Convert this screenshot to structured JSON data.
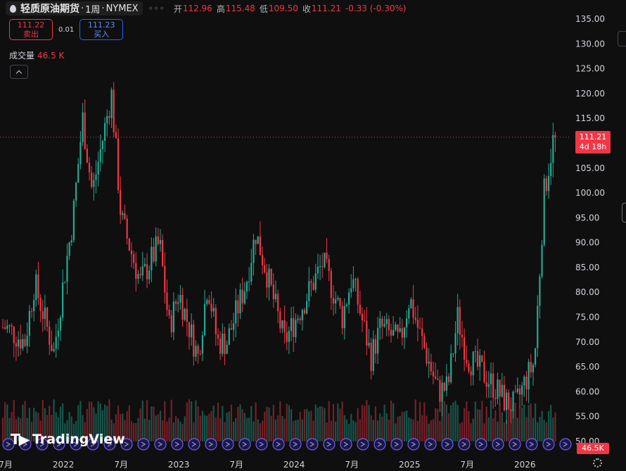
{
  "legend": {
    "symbol": "轻质原油期货",
    "interval": "1周",
    "exchange": "NYMEX",
    "more_dots": "◦◦◦",
    "open_label": "开",
    "open": "112.96",
    "high_label": "高",
    "high": "115.48",
    "low_label": "低",
    "low": "109.50",
    "close_label": "收",
    "close": "111.21",
    "change": "-0.33 (-0.30%)"
  },
  "trade": {
    "sell_price": "111.22",
    "sell_label": "卖出",
    "spread": "0.01",
    "buy_price": "111.23",
    "buy_label": "买入"
  },
  "volume": {
    "label": "成交量",
    "value": "46.5 K"
  },
  "last_price": {
    "price": "111.21",
    "countdown": "4d 18h"
  },
  "volume_tag": "46.5K",
  "brand": {
    "text": "TradingView"
  },
  "colors": {
    "up": "#22ab94",
    "down": "#f23645",
    "background": "#0f0f0f",
    "grid": "#2a2e39",
    "text": "#d1d4dc"
  },
  "icons": {
    "symbol": "droplet-icon",
    "collapse": "chevron-up-icon",
    "settings": "gear-icon"
  },
  "chart_data": {
    "type": "candlestick",
    "price_axis": {
      "min": 50,
      "max": 135,
      "ticks": [
        135,
        130,
        125,
        120,
        115,
        110,
        105,
        100,
        95,
        90,
        85,
        80,
        75,
        70,
        65,
        60,
        55,
        50
      ]
    },
    "time_axis": {
      "labels": [
        "7月",
        "2022",
        "7月",
        "2023",
        "7月",
        "2024",
        "7月",
        "2025",
        "7月",
        "2026"
      ]
    },
    "last_price": 111.21,
    "keypoints": [
      {
        "t": "2021-07",
        "price": 73
      },
      {
        "t": "2021-09",
        "price": 70
      },
      {
        "t": "2021-10",
        "price": 82
      },
      {
        "t": "2021-12",
        "price": 68
      },
      {
        "t": "2022-01",
        "price": 82
      },
      {
        "t": "2022-02",
        "price": 95
      },
      {
        "t": "2022-03",
        "price": 115
      },
      {
        "t": "2022-04",
        "price": 100
      },
      {
        "t": "2022-06",
        "price": 120
      },
      {
        "t": "2022-07",
        "price": 95
      },
      {
        "t": "2022-09",
        "price": 82
      },
      {
        "t": "2022-11",
        "price": 90
      },
      {
        "t": "2022-12",
        "price": 73
      },
      {
        "t": "2023-01",
        "price": 80
      },
      {
        "t": "2023-03",
        "price": 67
      },
      {
        "t": "2023-04",
        "price": 82
      },
      {
        "t": "2023-05",
        "price": 70
      },
      {
        "t": "2023-06",
        "price": 70
      },
      {
        "t": "2023-08",
        "price": 82
      },
      {
        "t": "2023-09",
        "price": 92
      },
      {
        "t": "2023-10",
        "price": 85
      },
      {
        "t": "2023-12",
        "price": 70
      },
      {
        "t": "2024-01",
        "price": 74
      },
      {
        "t": "2024-03",
        "price": 82
      },
      {
        "t": "2024-04",
        "price": 86
      },
      {
        "t": "2024-06",
        "price": 75
      },
      {
        "t": "2024-07",
        "price": 83
      },
      {
        "t": "2024-09",
        "price": 67
      },
      {
        "t": "2024-10",
        "price": 73
      },
      {
        "t": "2024-12",
        "price": 70
      },
      {
        "t": "2025-01",
        "price": 79
      },
      {
        "t": "2025-02",
        "price": 72
      },
      {
        "t": "2025-04",
        "price": 60
      },
      {
        "t": "2025-05",
        "price": 61
      },
      {
        "t": "2025-06",
        "price": 75
      },
      {
        "t": "2025-07",
        "price": 67
      },
      {
        "t": "2025-09",
        "price": 63
      },
      {
        "t": "2025-11",
        "price": 58
      },
      {
        "t": "2025-12",
        "price": 57
      },
      {
        "t": "2026-01",
        "price": 62
      },
      {
        "t": "2026-02",
        "price": 66
      },
      {
        "t": "2026-03",
        "price": 100
      },
      {
        "t": "2026-04",
        "price": 111.21
      }
    ]
  }
}
